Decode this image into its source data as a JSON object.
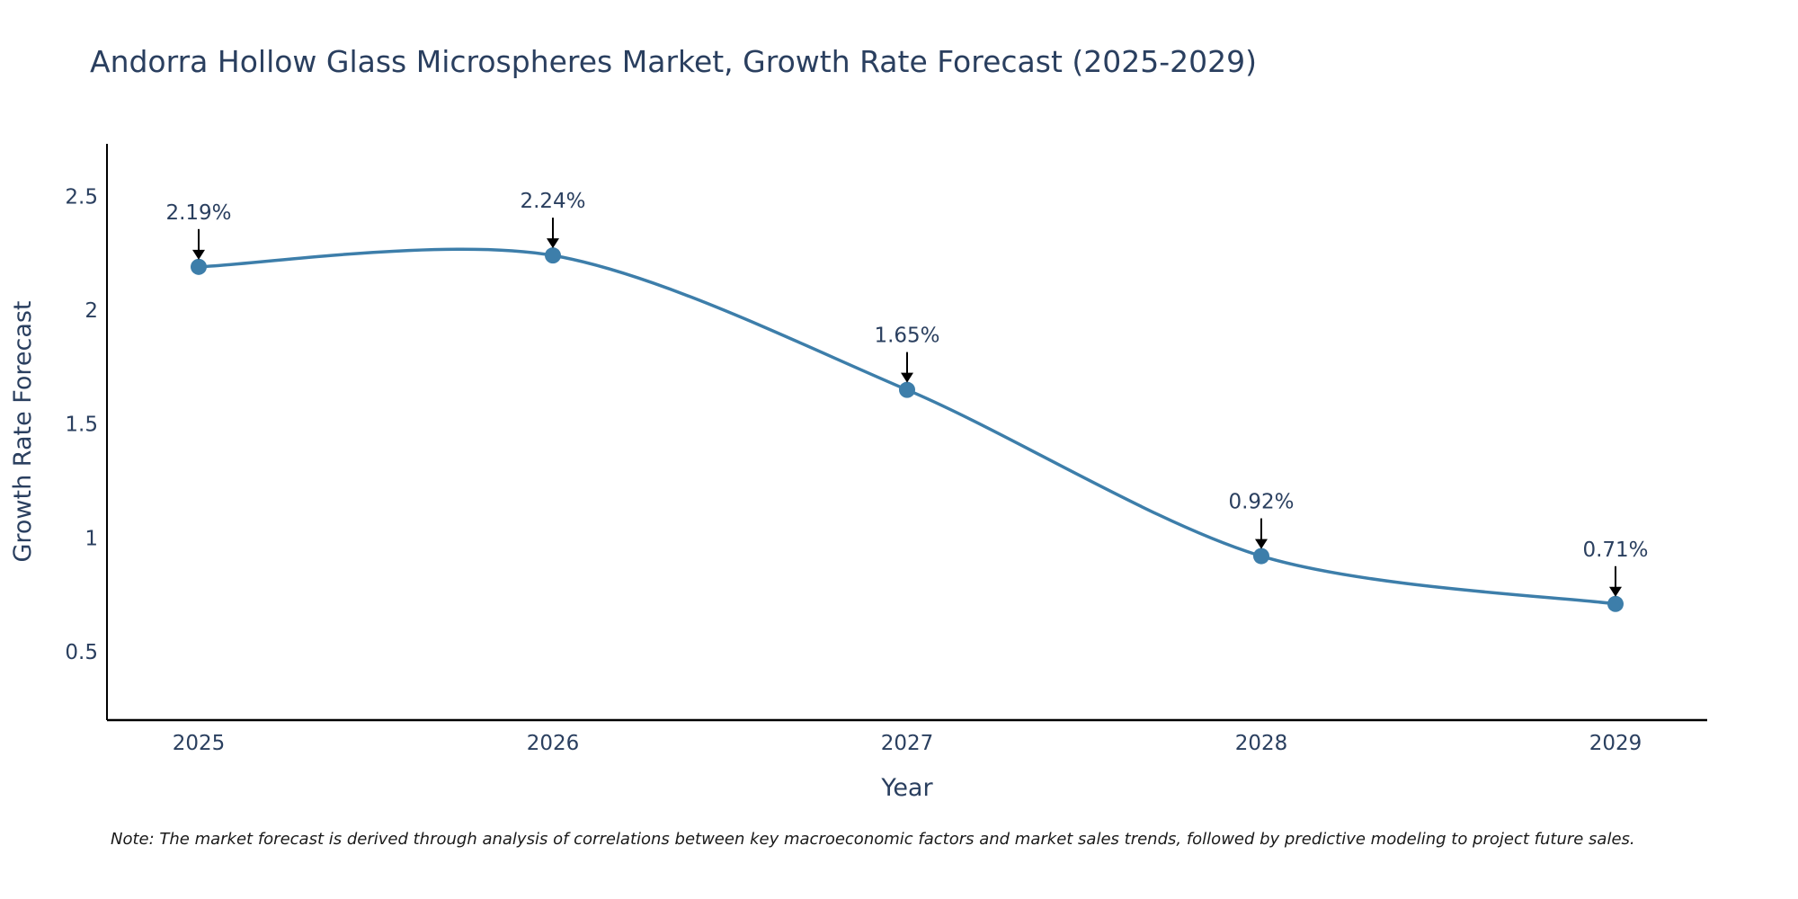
{
  "chart_data": {
    "type": "line",
    "title": "Andorra Hollow Glass Microspheres Market, Growth Rate Forecast (2025-2029)",
    "xlabel": "Year",
    "ylabel": "Growth Rate Forecast",
    "categories": [
      "2025",
      "2026",
      "2027",
      "2028",
      "2029"
    ],
    "series": [
      {
        "name": "Growth Rate Forecast",
        "values": [
          2.19,
          2.24,
          1.65,
          0.92,
          0.71
        ],
        "labels": [
          "2.19%",
          "2.24%",
          "1.65%",
          "0.92%",
          "0.71%"
        ]
      }
    ],
    "y_ticks": [
      0.5,
      1,
      1.5,
      2,
      2.5
    ],
    "y_tick_labels": [
      "0.5",
      "1",
      "1.5",
      "2",
      "2.5"
    ],
    "ylim": [
      0.2,
      2.73
    ],
    "grid": false,
    "line_color": "#3d7eaa",
    "marker_color": "#3d7eaa",
    "axis_color": "#000000",
    "note": "Note: The market forecast is derived through analysis of correlations between key macroeconomic factors and market sales trends, followed by predictive modeling to project future sales."
  }
}
